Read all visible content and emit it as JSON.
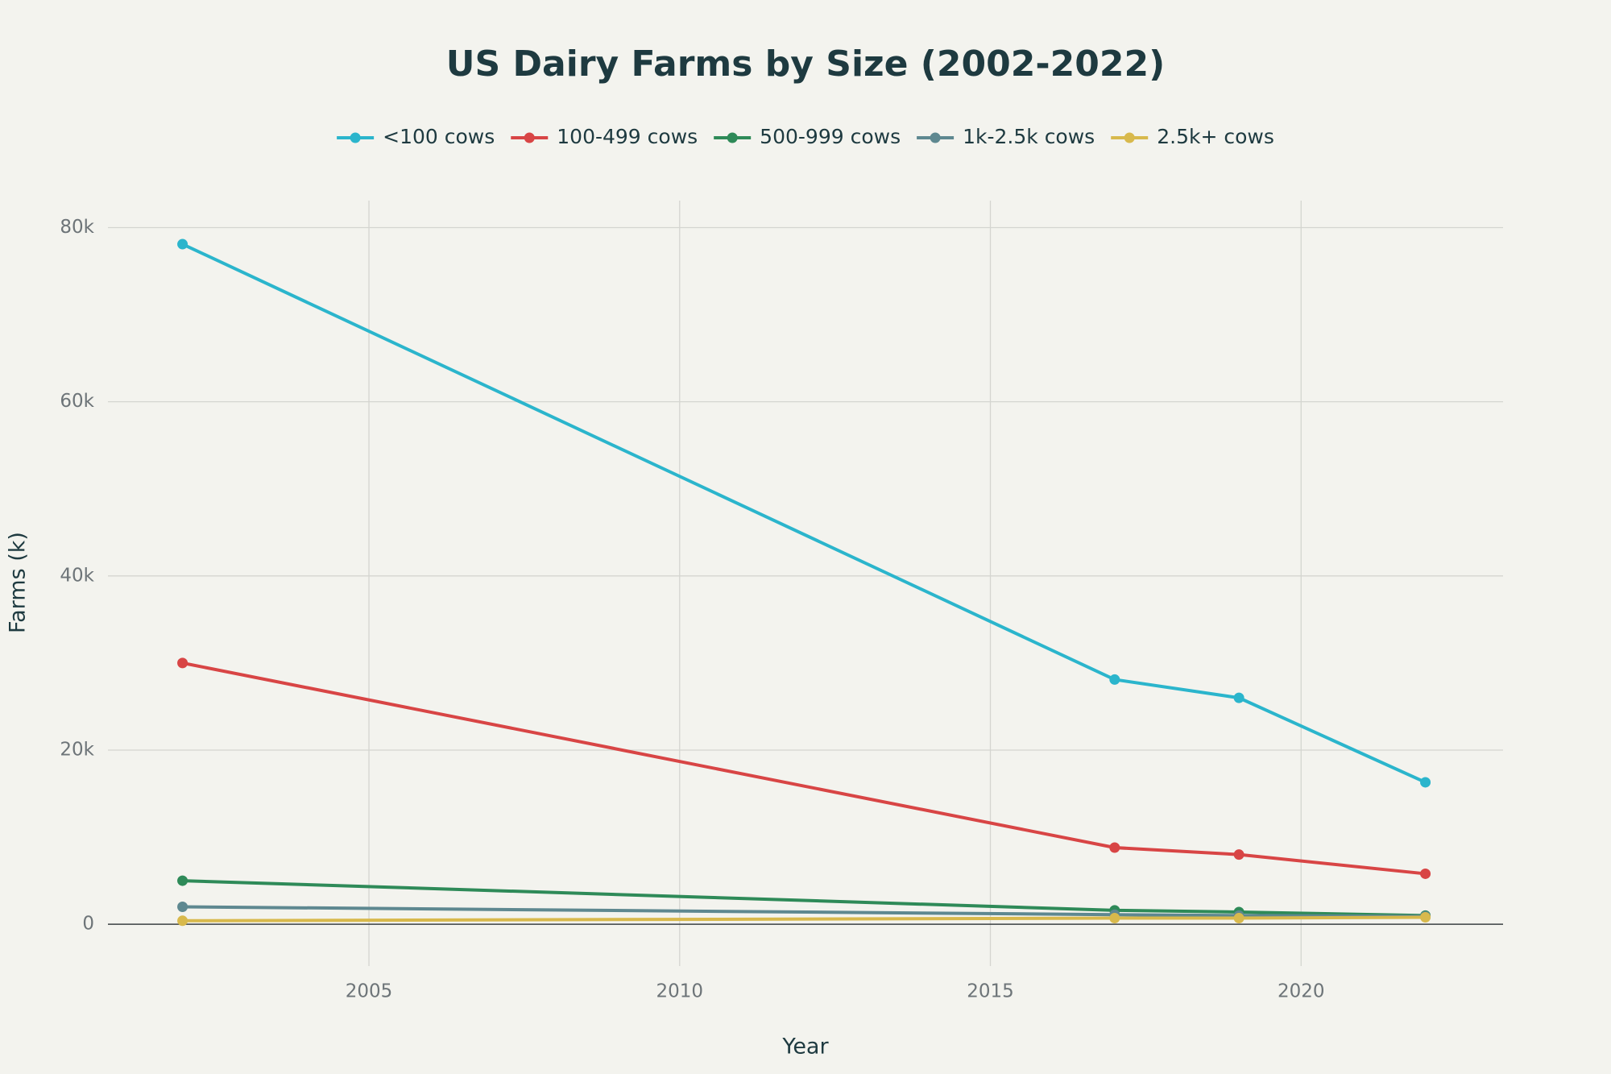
{
  "chart_data": {
    "type": "line",
    "title": "US Dairy Farms by Size (2002-2022)",
    "x_label": "Year",
    "y_label": "Farms (k)",
    "x": [
      2002,
      2017,
      2019,
      2022
    ],
    "series": [
      {
        "name": "<100 cows",
        "color": "#2bb5cc",
        "values": [
          78100,
          28100,
          26000,
          16300
        ]
      },
      {
        "name": "100-499 cows",
        "color": "#d84545",
        "values": [
          30000,
          8800,
          8000,
          5800
        ]
      },
      {
        "name": "500-999 cows",
        "color": "#2e8a58",
        "values": [
          5000,
          1600,
          1400,
          1000
        ]
      },
      {
        "name": "1k-2.5k cows",
        "color": "#5e8890",
        "values": [
          2000,
          1100,
          1000,
          900
        ]
      },
      {
        "name": "2.5k+ cows",
        "color": "#d8b94c",
        "values": [
          400,
          700,
          700,
          800
        ]
      }
    ],
    "xlim": [
      2000.8,
      2023.25
    ],
    "xticks": [
      2005,
      2010,
      2015,
      2020
    ],
    "ylim": [
      -4800,
      83100
    ],
    "yticks": [
      0,
      {
        "value": 20000,
        "label": "20k"
      },
      {
        "value": 40000,
        "label": "40k"
      },
      {
        "value": 60000,
        "label": "60k"
      },
      {
        "value": 80000,
        "label": "80k"
      }
    ],
    "grid": true,
    "legend": "top"
  }
}
